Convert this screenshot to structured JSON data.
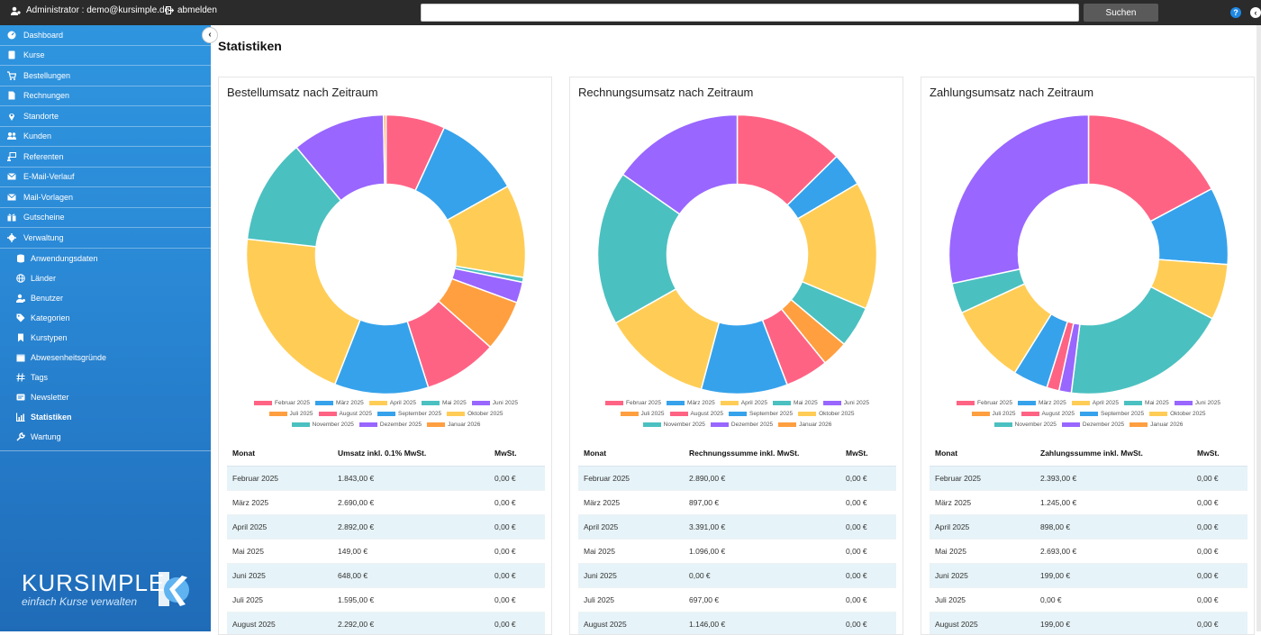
{
  "topbar": {
    "user_label": "Administrator : demo@kursimple.de",
    "logout_label": "abmelden",
    "search_value": "",
    "search_button": "Suchen",
    "help_symbol": "?",
    "back_symbol": "‹"
  },
  "sidebar": {
    "collapse_symbol": "‹",
    "items": [
      {
        "label": "Dashboard",
        "icon": "dashboard-icon"
      },
      {
        "label": "Kurse",
        "icon": "book-icon"
      },
      {
        "label": "Bestellungen",
        "icon": "cart-icon"
      },
      {
        "label": "Rechnungen",
        "icon": "file-icon"
      },
      {
        "label": "Standorte",
        "icon": "map-pin-icon"
      },
      {
        "label": "Kunden",
        "icon": "users-icon"
      },
      {
        "label": "Referenten",
        "icon": "presenter-icon"
      },
      {
        "label": "E-Mail-Verlauf",
        "icon": "envelope-icon"
      },
      {
        "label": "Mail-Vorlagen",
        "icon": "envelope-template-icon"
      },
      {
        "label": "Gutscheine",
        "icon": "gift-icon"
      },
      {
        "label": "Verwaltung",
        "icon": "gear-icon"
      }
    ],
    "subitems": [
      {
        "label": "Anwendungsdaten",
        "icon": "database-icon"
      },
      {
        "label": "Länder",
        "icon": "globe-icon"
      },
      {
        "label": "Benutzer",
        "icon": "user-gear-icon"
      },
      {
        "label": "Kategorien",
        "icon": "tags-icon"
      },
      {
        "label": "Kurstypen",
        "icon": "bookmark-icon"
      },
      {
        "label": "Abwesenheitsgründe",
        "icon": "calendar-icon"
      },
      {
        "label": "Tags",
        "icon": "hash-icon"
      },
      {
        "label": "Newsletter",
        "icon": "newsletter-icon"
      },
      {
        "label": "Statistiken",
        "icon": "chart-icon",
        "active": true
      },
      {
        "label": "Wartung",
        "icon": "wrench-icon"
      }
    ],
    "logo_word": "KURSIMPLE",
    "logo_tagline": "einfach Kurse verwalten"
  },
  "page": {
    "title": "Statistiken"
  },
  "legend_labels": [
    "Februar 2025",
    "März 2025",
    "April 2025",
    "Mai 2025",
    "Juni 2025",
    "Juli 2025",
    "August 2025",
    "September 2025",
    "Oktober 2025",
    "November 2025",
    "Dezember 2025",
    "Januar 2026"
  ],
  "colors": [
    "#ff6384",
    "#36a2eb",
    "#ffcd56",
    "#4bc0c0",
    "#9966ff",
    "#ff9f40",
    "#ff6384",
    "#36a2eb",
    "#ffcd56",
    "#4bc0c0",
    "#9966ff",
    "#ff9f40"
  ],
  "chart_data": [
    {
      "type": "pie",
      "title": "Bestellumsatz nach Zeitraum",
      "categories": [
        "Februar 2025",
        "März 2025",
        "April 2025",
        "Mai 2025",
        "Juni 2025",
        "Juli 2025",
        "August 2025",
        "September 2025",
        "Oktober 2025",
        "November 2025",
        "Dezember 2025",
        "Januar 2026"
      ],
      "values": [
        1843,
        2690,
        2892,
        149,
        648,
        1595,
        2292,
        2923,
        5585,
        3263,
        2900,
        76
      ]
    },
    {
      "type": "pie",
      "title": "Rechnungsumsatz nach Zeitraum",
      "categories": [
        "Februar 2025",
        "März 2025",
        "April 2025",
        "Mai 2025",
        "Juni 2025",
        "Juli 2025",
        "August 2025",
        "September 2025",
        "Oktober 2025",
        "November 2025",
        "Dezember 2025",
        "Januar 2026"
      ],
      "values": [
        2890,
        897,
        3391,
        1096,
        0,
        697,
        1146,
        2290,
        2900,
        4100,
        3500,
        0
      ]
    },
    {
      "type": "pie",
      "title": "Zahlungsumsatz nach Zeitraum",
      "categories": [
        "Februar 2025",
        "März 2025",
        "April 2025",
        "Mai 2025",
        "Juni 2025",
        "Juli 2025",
        "August 2025",
        "September 2025",
        "Oktober 2025",
        "November 2025",
        "Dezember 2025",
        "Januar 2026"
      ],
      "values": [
        2393,
        1245,
        898,
        2693,
        199,
        0,
        199,
        563,
        1287,
        490,
        3942,
        0
      ]
    }
  ],
  "tables": [
    {
      "headers": [
        "Monat",
        "Umsatz inkl. 0.1% MwSt.",
        "MwSt."
      ],
      "rows": [
        [
          "Februar 2025",
          "1.843,00 €",
          "0,00 €"
        ],
        [
          "März 2025",
          "2.690,00 €",
          "0,00 €"
        ],
        [
          "April 2025",
          "2.892,00 €",
          "0,00 €"
        ],
        [
          "Mai 2025",
          "149,00 €",
          "0,00 €"
        ],
        [
          "Juni 2025",
          "648,00 €",
          "0,00 €"
        ],
        [
          "Juli 2025",
          "1.595,00 €",
          "0,00 €"
        ],
        [
          "August 2025",
          "2.292,00 €",
          "0,00 €"
        ]
      ]
    },
    {
      "headers": [
        "Monat",
        "Rechnungssumme inkl. MwSt.",
        "MwSt."
      ],
      "rows": [
        [
          "Februar 2025",
          "2.890,00 €",
          "0,00 €"
        ],
        [
          "März 2025",
          "897,00 €",
          "0,00 €"
        ],
        [
          "April 2025",
          "3.391,00 €",
          "0,00 €"
        ],
        [
          "Mai 2025",
          "1.096,00 €",
          "0,00 €"
        ],
        [
          "Juni 2025",
          "0,00 €",
          "0,00 €"
        ],
        [
          "Juli 2025",
          "697,00 €",
          "0,00 €"
        ],
        [
          "August 2025",
          "1.146,00 €",
          "0,00 €"
        ]
      ]
    },
    {
      "headers": [
        "Monat",
        "Zahlungssumme inkl. MwSt.",
        "MwSt."
      ],
      "rows": [
        [
          "Februar 2025",
          "2.393,00 €",
          "0,00 €"
        ],
        [
          "März 2025",
          "1.245,00 €",
          "0,00 €"
        ],
        [
          "April 2025",
          "898,00 €",
          "0,00 €"
        ],
        [
          "Mai 2025",
          "2.693,00 €",
          "0,00 €"
        ],
        [
          "Juni 2025",
          "199,00 €",
          "0,00 €"
        ],
        [
          "Juli 2025",
          "0,00 €",
          "0,00 €"
        ],
        [
          "August 2025",
          "199,00 €",
          "0,00 €"
        ]
      ]
    }
  ]
}
